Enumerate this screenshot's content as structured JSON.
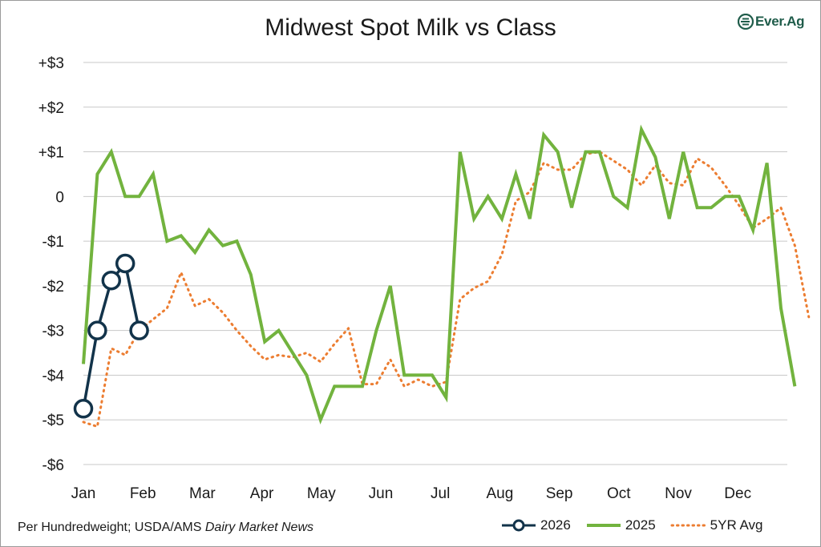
{
  "title": "Midwest Spot Milk vs Class",
  "logo_text": "Ever.Ag",
  "source_prefix": "Per Hundredweight; USDA/AMS ",
  "source_italic": "Dairy Market News",
  "colors": {
    "s2026": "#12334a",
    "s2025": "#72b33e",
    "s5yr": "#ec7d31",
    "grid": "#c8c8c8",
    "logo": "#1f5c4a"
  },
  "chart_data": {
    "type": "line",
    "ylim": [
      -6,
      3
    ],
    "ytick_values": [
      3,
      2,
      1,
      0,
      -1,
      -2,
      -3,
      -4,
      -5,
      -6
    ],
    "ytick_labels": [
      "+$3",
      "+$2",
      "+$1",
      "0",
      "-$1",
      "-$2",
      "-$3",
      "-$4",
      "-$5",
      "-$6"
    ],
    "months": [
      "Jan",
      "Feb",
      "Mar",
      "Apr",
      "May",
      "Jun",
      "Jul",
      "Aug",
      "Sep",
      "Oct",
      "Nov",
      "Dec"
    ],
    "grid": true,
    "legend_position": "bottom-right",
    "series": [
      {
        "name": "2026",
        "style": "solid-markers",
        "values": [
          -4.75,
          -3.0,
          -1.88,
          -1.5,
          -3.0
        ]
      },
      {
        "name": "2025",
        "style": "solid",
        "values": [
          -3.75,
          0.5,
          1.0,
          0.0,
          0.0,
          0.5,
          -1.0,
          -0.88,
          -1.25,
          -0.75,
          -1.1,
          -1.0,
          -1.75,
          -3.25,
          -3.0,
          -3.5,
          -4.0,
          -5.0,
          -4.25,
          -4.25,
          -4.25,
          -3.0,
          -2.0,
          -4.0,
          -4.0,
          -4.0,
          -4.5,
          1.0,
          -0.5,
          0.0,
          -0.5,
          0.5,
          -0.5,
          1.38,
          1.0,
          -0.25,
          1.0,
          1.0,
          0.0,
          -0.25,
          1.5,
          0.88,
          -0.5,
          1.0,
          -0.25,
          -0.25,
          0.0,
          0.0,
          -0.75,
          0.75,
          -2.5,
          -4.25
        ]
      },
      {
        "name": "5YR Avg",
        "style": "dotted",
        "values": [
          -5.05,
          -5.15,
          -3.4,
          -3.55,
          -3.0,
          -2.75,
          -2.5,
          -1.7,
          -2.45,
          -2.3,
          -2.6,
          -3.0,
          -3.35,
          -3.65,
          -3.55,
          -3.6,
          -3.5,
          -3.7,
          -3.3,
          -2.95,
          -4.2,
          -4.2,
          -3.65,
          -4.25,
          -4.1,
          -4.25,
          -4.15,
          -2.3,
          -2.05,
          -1.9,
          -1.3,
          -0.1,
          0.1,
          0.75,
          0.6,
          0.6,
          0.95,
          1.0,
          0.8,
          0.6,
          0.25,
          0.7,
          0.3,
          0.25,
          0.85,
          0.65,
          0.25,
          -0.2,
          -0.7,
          -0.5,
          -0.25,
          -1.1,
          -2.7
        ]
      }
    ]
  }
}
